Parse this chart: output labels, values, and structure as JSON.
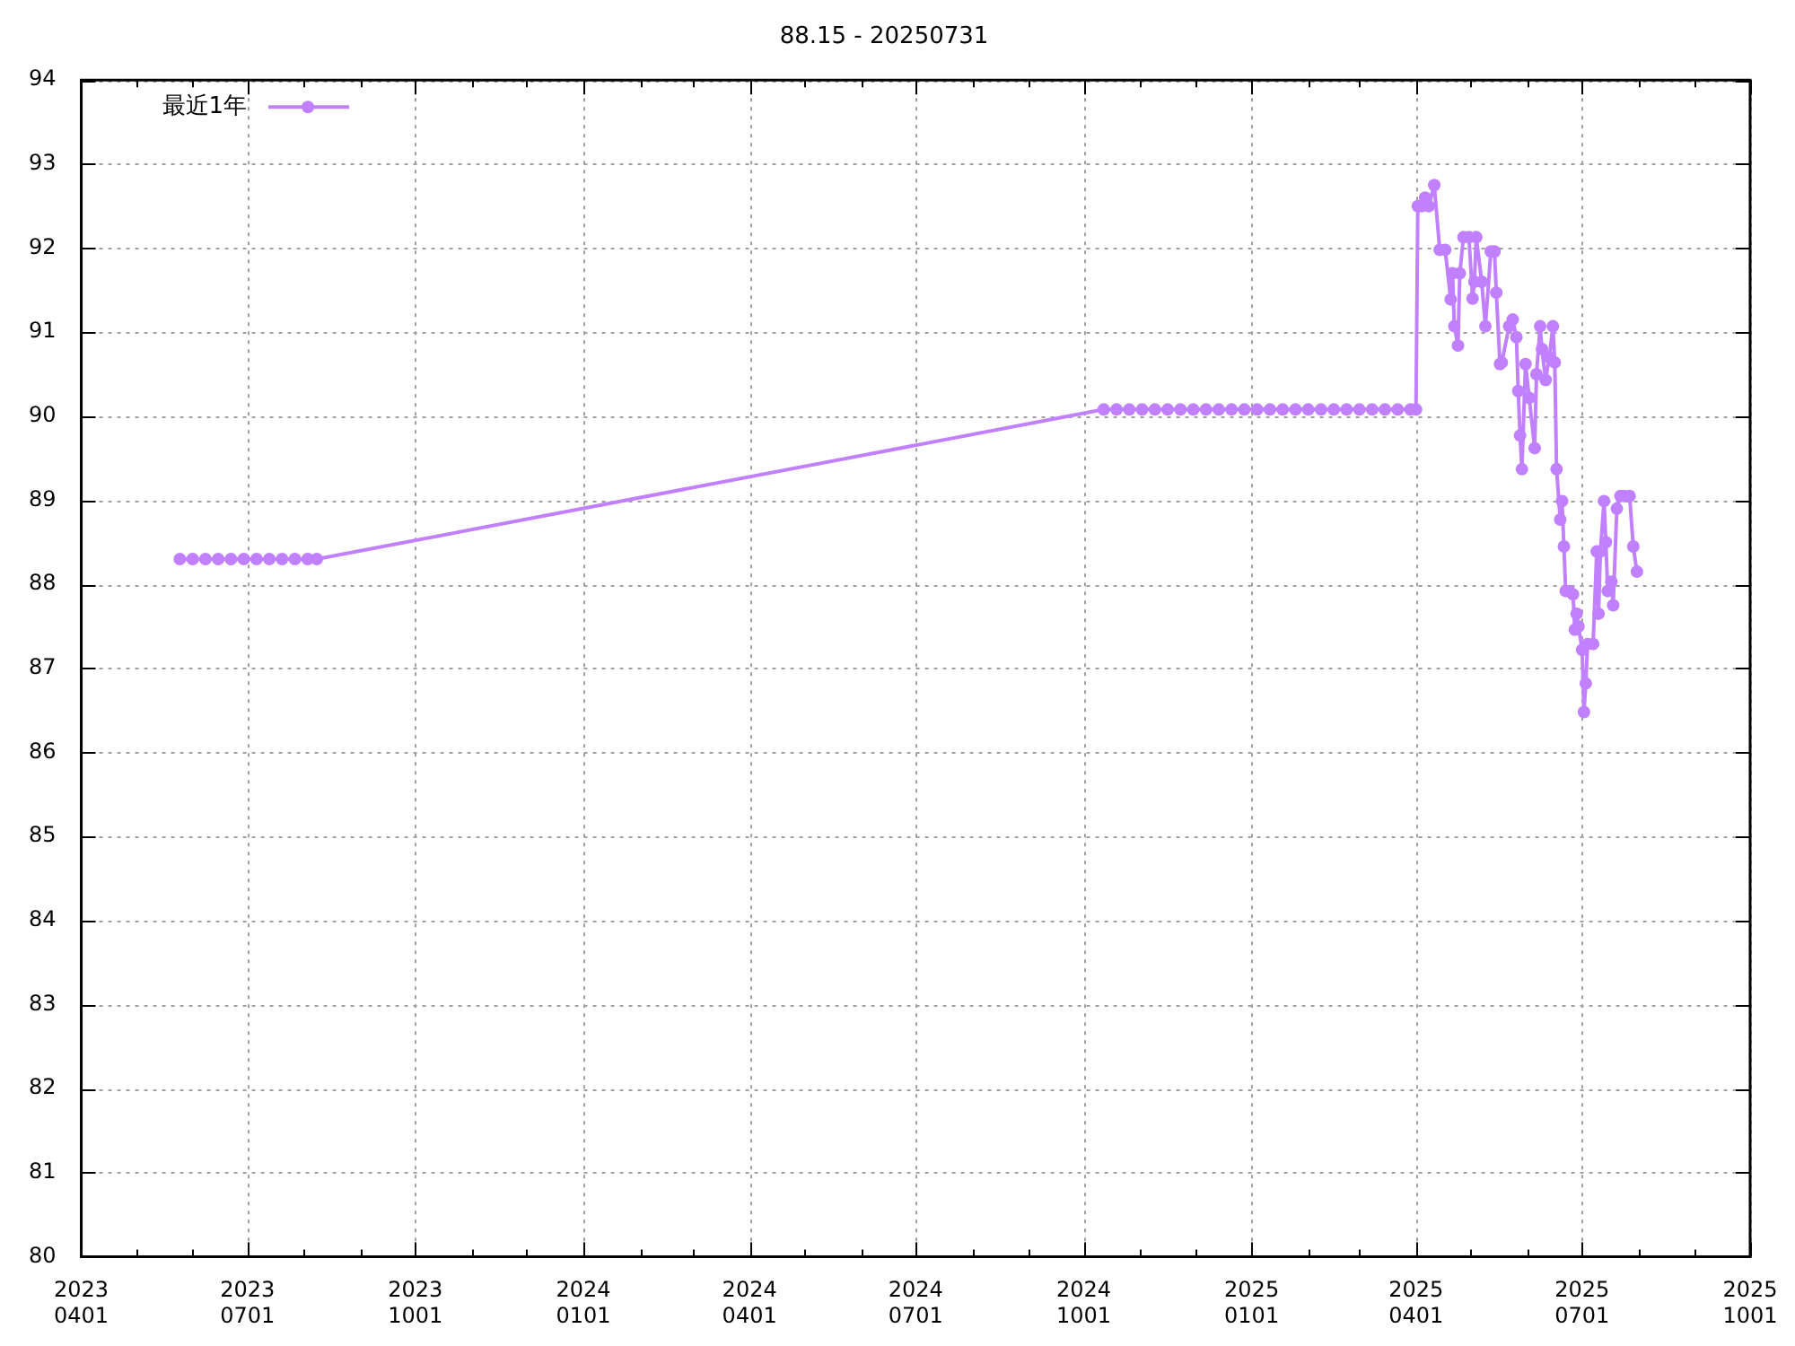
{
  "chart_data": {
    "type": "line",
    "title": "88.15 - 20250731",
    "legend": "top left",
    "grid": true,
    "marker": "circle",
    "line_style": "solid",
    "xlim": [
      "2023-04-01",
      "2025-10-01"
    ],
    "xticks": [
      {
        "value": "2023-04-01",
        "label": "2023\n0401"
      },
      {
        "value": "2023-05-01",
        "label": null
      },
      {
        "value": "2023-06-01",
        "label": null
      },
      {
        "value": "2023-07-01",
        "label": "2023\n0701"
      },
      {
        "value": "2023-08-01",
        "label": null
      },
      {
        "value": "2023-09-01",
        "label": null
      },
      {
        "value": "2023-10-01",
        "label": "2023\n1001"
      },
      {
        "value": "2023-11-01",
        "label": null
      },
      {
        "value": "2023-12-01",
        "label": null
      },
      {
        "value": "2024-01-01",
        "label": "2024\n0101"
      },
      {
        "value": "2024-02-01",
        "label": null
      },
      {
        "value": "2024-03-01",
        "label": null
      },
      {
        "value": "2024-04-01",
        "label": "2024\n0401"
      },
      {
        "value": "2024-05-01",
        "label": null
      },
      {
        "value": "2024-06-01",
        "label": null
      },
      {
        "value": "2024-07-01",
        "label": "2024\n0701"
      },
      {
        "value": "2024-08-01",
        "label": null
      },
      {
        "value": "2024-09-01",
        "label": null
      },
      {
        "value": "2024-10-01",
        "label": "2024\n1001"
      },
      {
        "value": "2024-11-01",
        "label": null
      },
      {
        "value": "2024-12-01",
        "label": null
      },
      {
        "value": "2025-01-01",
        "label": "2025\n0101"
      },
      {
        "value": "2025-02-01",
        "label": null
      },
      {
        "value": "2025-03-01",
        "label": null
      },
      {
        "value": "2025-04-01",
        "label": "2025\n0401"
      },
      {
        "value": "2025-05-01",
        "label": null
      },
      {
        "value": "2025-06-01",
        "label": null
      },
      {
        "value": "2025-07-01",
        "label": "2025\n0701"
      },
      {
        "value": "2025-08-01",
        "label": null
      },
      {
        "value": "2025-09-01",
        "label": null
      },
      {
        "value": "2025-10-01",
        "label": "2025\n1001"
      }
    ],
    "ylim": [
      80,
      94
    ],
    "yticks": [
      80,
      81,
      82,
      83,
      84,
      85,
      86,
      87,
      88,
      89,
      90,
      91,
      92,
      93,
      94
    ],
    "series": [
      {
        "name": "最近1年",
        "color": "#c080ff",
        "x": [
          "2023-05-25",
          "2023-06-01",
          "2023-06-08",
          "2023-06-15",
          "2023-06-22",
          "2023-06-29",
          "2023-07-06",
          "2023-07-13",
          "2023-07-20",
          "2023-07-27",
          "2023-08-03",
          "2023-08-08",
          "2024-10-12",
          "2024-10-19",
          "2024-10-26",
          "2024-11-02",
          "2024-11-09",
          "2024-11-16",
          "2024-11-23",
          "2024-11-30",
          "2024-12-07",
          "2024-12-14",
          "2024-12-21",
          "2024-12-28",
          "2025-01-04",
          "2025-01-11",
          "2025-01-18",
          "2025-01-25",
          "2025-02-01",
          "2025-02-08",
          "2025-02-15",
          "2025-02-22",
          "2025-03-01",
          "2025-03-08",
          "2025-03-15",
          "2025-03-22",
          "2025-03-29",
          "2025-04-01",
          "2025-04-02",
          "2025-04-04",
          "2025-04-06",
          "2025-04-08",
          "2025-04-11",
          "2025-04-14",
          "2025-04-17",
          "2025-04-20",
          "2025-04-21",
          "2025-04-22",
          "2025-04-24",
          "2025-04-25",
          "2025-04-27",
          "2025-04-30",
          "2025-05-02",
          "2025-05-03",
          "2025-05-04",
          "2025-05-07",
          "2025-05-09",
          "2025-05-12",
          "2025-05-14",
          "2025-05-15",
          "2025-05-17",
          "2025-05-18",
          "2025-05-22",
          "2025-05-24",
          "2025-05-26",
          "2025-05-27",
          "2025-05-28",
          "2025-05-29",
          "2025-05-31",
          "2025-06-02",
          "2025-06-05",
          "2025-06-06",
          "2025-06-08",
          "2025-06-09",
          "2025-06-11",
          "2025-06-13",
          "2025-06-15",
          "2025-06-16",
          "2025-06-17",
          "2025-06-19",
          "2025-06-20",
          "2025-06-21",
          "2025-06-22",
          "2025-06-24",
          "2025-06-26",
          "2025-06-27",
          "2025-06-28",
          "2025-06-29",
          "2025-07-01",
          "2025-07-02",
          "2025-07-03",
          "2025-07-04",
          "2025-07-07",
          "2025-07-09",
          "2025-07-10",
          "2025-07-11",
          "2025-07-13",
          "2025-07-14",
          "2025-07-15",
          "2025-07-17",
          "2025-07-18",
          "2025-07-20",
          "2025-07-22",
          "2025-07-24",
          "2025-07-27",
          "2025-07-29",
          "2025-07-31"
        ],
        "values": [
          88.3,
          88.3,
          88.3,
          88.3,
          88.3,
          88.3,
          88.3,
          88.3,
          88.3,
          88.3,
          88.3,
          88.3,
          90.08,
          90.08,
          90.08,
          90.08,
          90.08,
          90.08,
          90.08,
          90.08,
          90.08,
          90.08,
          90.08,
          90.08,
          90.08,
          90.08,
          90.08,
          90.08,
          90.08,
          90.08,
          90.08,
          90.08,
          90.08,
          90.08,
          90.08,
          90.08,
          90.08,
          90.08,
          92.5,
          92.5,
          92.6,
          92.5,
          92.75,
          91.98,
          91.98,
          91.39,
          91.7,
          91.07,
          90.84,
          91.7,
          92.13,
          92.13,
          91.4,
          91.6,
          92.13,
          91.6,
          91.07,
          91.96,
          91.96,
          91.47,
          90.62,
          90.64,
          91.07,
          91.15,
          90.94,
          90.3,
          89.77,
          89.37,
          90.62,
          90.22,
          89.62,
          90.5,
          91.07,
          90.8,
          90.43,
          90.7,
          91.07,
          90.64,
          89.37,
          88.77,
          88.99,
          88.45,
          87.92,
          87.92,
          87.88,
          87.46,
          87.65,
          87.5,
          87.22,
          86.48,
          86.82,
          87.29,
          87.29,
          88.39,
          87.65,
          88.39,
          88.99,
          88.5,
          87.92,
          88.03,
          87.75,
          88.9,
          89.05,
          89.05,
          89.05,
          88.45,
          88.15
        ]
      }
    ]
  }
}
